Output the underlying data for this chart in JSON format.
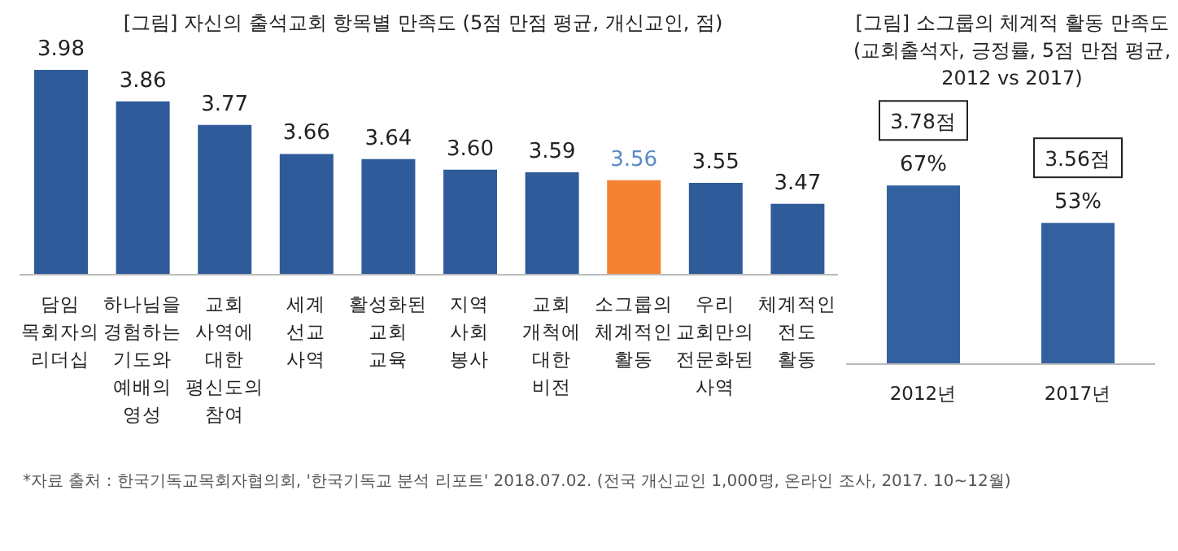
{
  "chart_data": [
    {
      "type": "bar",
      "title": "[그림] 자신의 출석교회 항목별 만족도 (5점 만점 평균, 개신교인, 점)",
      "categories": [
        "담임 목회자의 리더십",
        "하나님을 경험하는 기도와 예배의 영성",
        "교회 사역에 대한 평신도의 참여",
        "세계 선교 사역",
        "활성화된 교회 교육",
        "지역 사회 봉사",
        "교회 개척에 대한 비전",
        "소그룹의 체계적인 활동",
        "우리 교회만의 전문화된 사역",
        "체계적인 전도 활동"
      ],
      "values": [
        3.98,
        3.86,
        3.77,
        3.66,
        3.64,
        3.6,
        3.59,
        3.56,
        3.55,
        3.47
      ],
      "value_labels": [
        "3.98",
        "3.86",
        "3.77",
        "3.66",
        "3.64",
        "3.60",
        "3.59",
        "3.56",
        "3.55",
        "3.47"
      ],
      "colors": [
        "#2f5b9b",
        "#2f5b9b",
        "#2f5b9b",
        "#2f5b9b",
        "#2f5b9b",
        "#2f5b9b",
        "#2f5b9b",
        "#f58233",
        "#2f5b9b",
        "#2f5b9b"
      ],
      "ylim": [
        3.2,
        3.98
      ],
      "annotations": [
        "*자료 출처 : 한국기독교목회자협의회, '한국기독교 분석 리포트' 2018.07.02. (전국 개신교인 1,000명, 온라인 조사, 2017. 10~12월)"
      ]
    },
    {
      "type": "bar",
      "title": "[그림] 소그룹의 체계적 활동 만족도 (교회출석자, 긍정률, 5점 만점 평균, 2012 vs 2017)",
      "categories": [
        "2012년",
        "2017년"
      ],
      "values": [
        67,
        53
      ],
      "value_labels": [
        "67%",
        "53%"
      ],
      "color": "#33609f",
      "ylim": [
        0,
        100
      ],
      "annotations": [
        {
          "text": "3.78점",
          "x": "2012년",
          "y": 67
        },
        {
          "text": "3.56점",
          "x": "2017년",
          "y": 53
        }
      ]
    }
  ]
}
